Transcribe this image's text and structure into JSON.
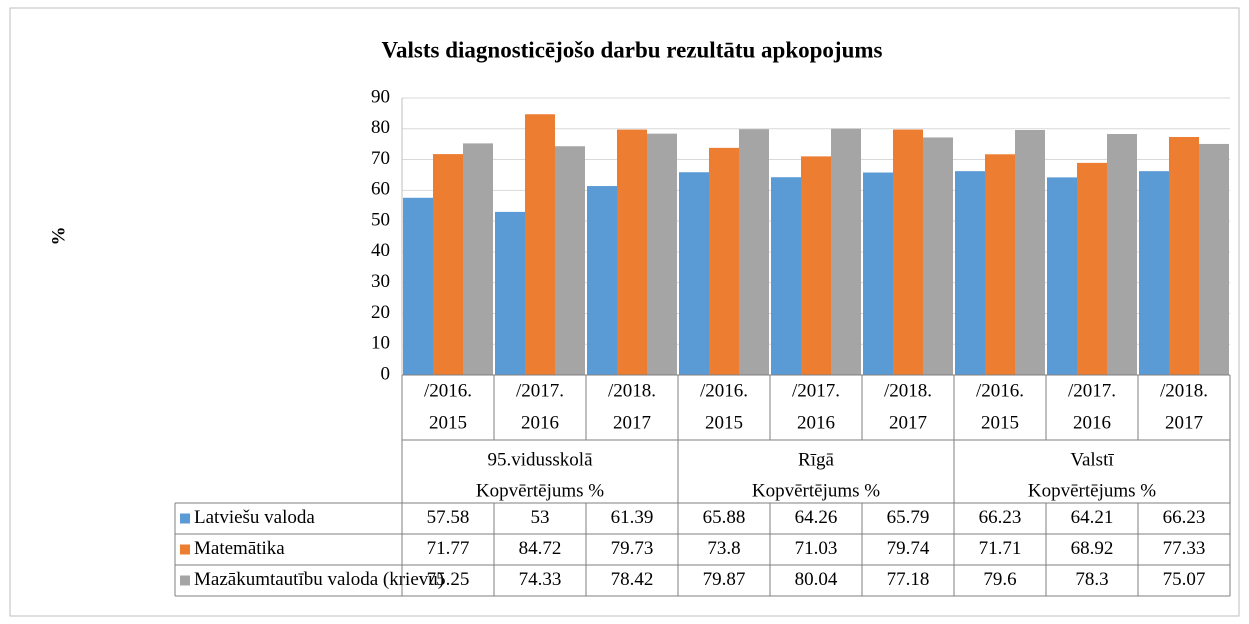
{
  "chart_data": {
    "type": "bar",
    "title": "Valsts diagnosticējošo darbu rezultātu apkopojums",
    "y_label": "%",
    "categories": [
      [
        "/2016.",
        "2015"
      ],
      [
        "/2017.",
        "2016"
      ],
      [
        "/2018.",
        "2017"
      ],
      [
        "/2016.",
        "2015"
      ],
      [
        "/2017.",
        "2016"
      ],
      [
        "/2018.",
        "2017"
      ],
      [
        "/2016.",
        "2015"
      ],
      [
        "/2017.",
        "2016"
      ],
      [
        "/2018.",
        "2017"
      ]
    ],
    "groups": [
      {
        "name": "95.vidusskolā",
        "label": "Kopvērtējums %"
      },
      {
        "name": "Rīgā",
        "label": "Kopvērtējums %"
      },
      {
        "name": "Valstī",
        "label": "Kopvērtējums %"
      }
    ],
    "series": [
      {
        "name": "Latviešu valoda",
        "color": "#5b9bd5",
        "values": [
          57.58,
          53,
          61.39,
          65.88,
          64.26,
          65.79,
          66.23,
          64.21,
          66.23
        ]
      },
      {
        "name": "Matemātika",
        "color": "#ed7d31",
        "values": [
          71.77,
          84.72,
          79.73,
          73.8,
          71.03,
          79.74,
          71.71,
          68.92,
          77.33
        ]
      },
      {
        "name": "Mazākumtautību valoda (krievu)",
        "color": "#a5a5a5",
        "values": [
          75.25,
          74.33,
          78.42,
          79.87,
          80.04,
          77.18,
          79.6,
          78.3,
          75.07
        ]
      }
    ],
    "ylim": [
      0,
      90
    ],
    "yticks": [
      0,
      10,
      20,
      30,
      40,
      50,
      60,
      70,
      80,
      90
    ],
    "grid": true,
    "data_table": true
  }
}
